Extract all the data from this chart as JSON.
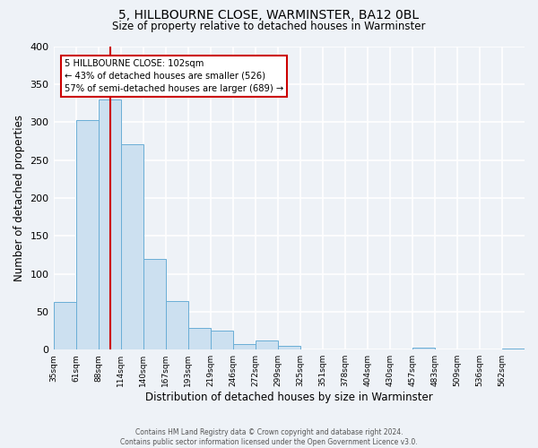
{
  "title": "5, HILLBOURNE CLOSE, WARMINSTER, BA12 0BL",
  "subtitle": "Size of property relative to detached houses in Warminster",
  "xlabel": "Distribution of detached houses by size in Warminster",
  "ylabel": "Number of detached properties",
  "bar_color": "#cce0f0",
  "bar_edge_color": "#6aaed6",
  "background_color": "#eef2f7",
  "grid_color": "#ffffff",
  "categories": [
    "35sqm",
    "61sqm",
    "88sqm",
    "114sqm",
    "140sqm",
    "167sqm",
    "193sqm",
    "219sqm",
    "246sqm",
    "272sqm",
    "299sqm",
    "325sqm",
    "351sqm",
    "378sqm",
    "404sqm",
    "430sqm",
    "457sqm",
    "483sqm",
    "509sqm",
    "536sqm",
    "562sqm"
  ],
  "values": [
    63,
    302,
    330,
    271,
    120,
    64,
    29,
    25,
    7,
    12,
    5,
    0,
    0,
    0,
    0,
    0,
    3,
    0,
    0,
    0,
    2
  ],
  "property_line_x": 2,
  "bin_edges_idx": [
    0,
    1,
    2,
    3,
    4,
    5,
    6,
    7,
    8,
    9,
    10,
    11,
    12,
    13,
    14,
    15,
    16,
    17,
    18,
    19,
    20,
    21
  ],
  "annotation_title": "5 HILLBOURNE CLOSE: 102sqm",
  "annotation_line1": "← 43% of detached houses are smaller (526)",
  "annotation_line2": "57% of semi-detached houses are larger (689) →",
  "annotation_box_color": "#ffffff",
  "annotation_box_edge": "#cc0000",
  "vline_color": "#cc0000",
  "ylim": [
    0,
    400
  ],
  "yticks": [
    0,
    50,
    100,
    150,
    200,
    250,
    300,
    350,
    400
  ],
  "footer1": "Contains HM Land Registry data © Crown copyright and database right 2024.",
  "footer2": "Contains public sector information licensed under the Open Government Licence v3.0."
}
